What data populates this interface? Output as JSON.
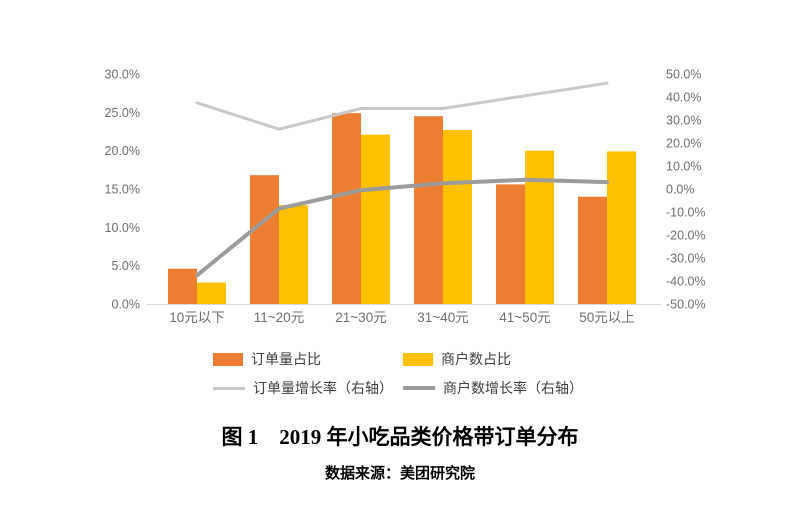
{
  "figure": {
    "title": "图 1　2019 年小吃品类价格带订单分布",
    "source": "数据来源：美团研究院"
  },
  "chart_data": {
    "type": "bar",
    "subtype": "combo-bar-line-dual-axis",
    "title": "图 1　2019 年小吃品类价格带订单分布",
    "categories": [
      "10元以下",
      "11~20元",
      "21~30元",
      "31~40元",
      "41~50元",
      "50元以上"
    ],
    "series": [
      {
        "key": "order-share",
        "name": "订单量占比",
        "kind": "bar",
        "axis": "left",
        "color": "#ED7D31",
        "values": [
          4.6,
          16.8,
          24.9,
          24.5,
          15.6,
          14.0
        ]
      },
      {
        "key": "merchant-share",
        "name": "商户数占比",
        "kind": "bar",
        "axis": "left",
        "color": "#FFC000",
        "values": [
          2.8,
          12.9,
          22.1,
          22.7,
          20.0,
          19.9
        ]
      },
      {
        "key": "order-growth",
        "name": "订单量增长率（右轴）",
        "kind": "line",
        "axis": "right",
        "color": "#C9C9C9",
        "values": [
          37.5,
          26.0,
          35.0,
          35.0,
          40.5,
          46.0
        ]
      },
      {
        "key": "merchant-growth",
        "name": "商户数增长率（右轴）",
        "kind": "line",
        "axis": "right",
        "color": "#9B9B9B",
        "values": [
          -37.5,
          -8.5,
          -0.5,
          2.5,
          4.0,
          3.0
        ]
      }
    ],
    "left_axis": {
      "min": 0,
      "max": 30,
      "step": 5,
      "unit": "%",
      "tick_labels": [
        "30.0%",
        "25.0%",
        "20.0%",
        "15.0%",
        "10.0%",
        "5.0%",
        "0.0%"
      ]
    },
    "right_axis": {
      "min": -50,
      "max": 50,
      "step": 10,
      "unit": "%",
      "tick_labels": [
        "50.0%",
        "40.0%",
        "30.0%",
        "20.0%",
        "10.0%",
        "0.0%",
        "-10.0%",
        "-20.0%",
        "-30.0%",
        "-40.0%",
        "-50.0%"
      ]
    },
    "grid": false,
    "legend_position": "bottom"
  }
}
